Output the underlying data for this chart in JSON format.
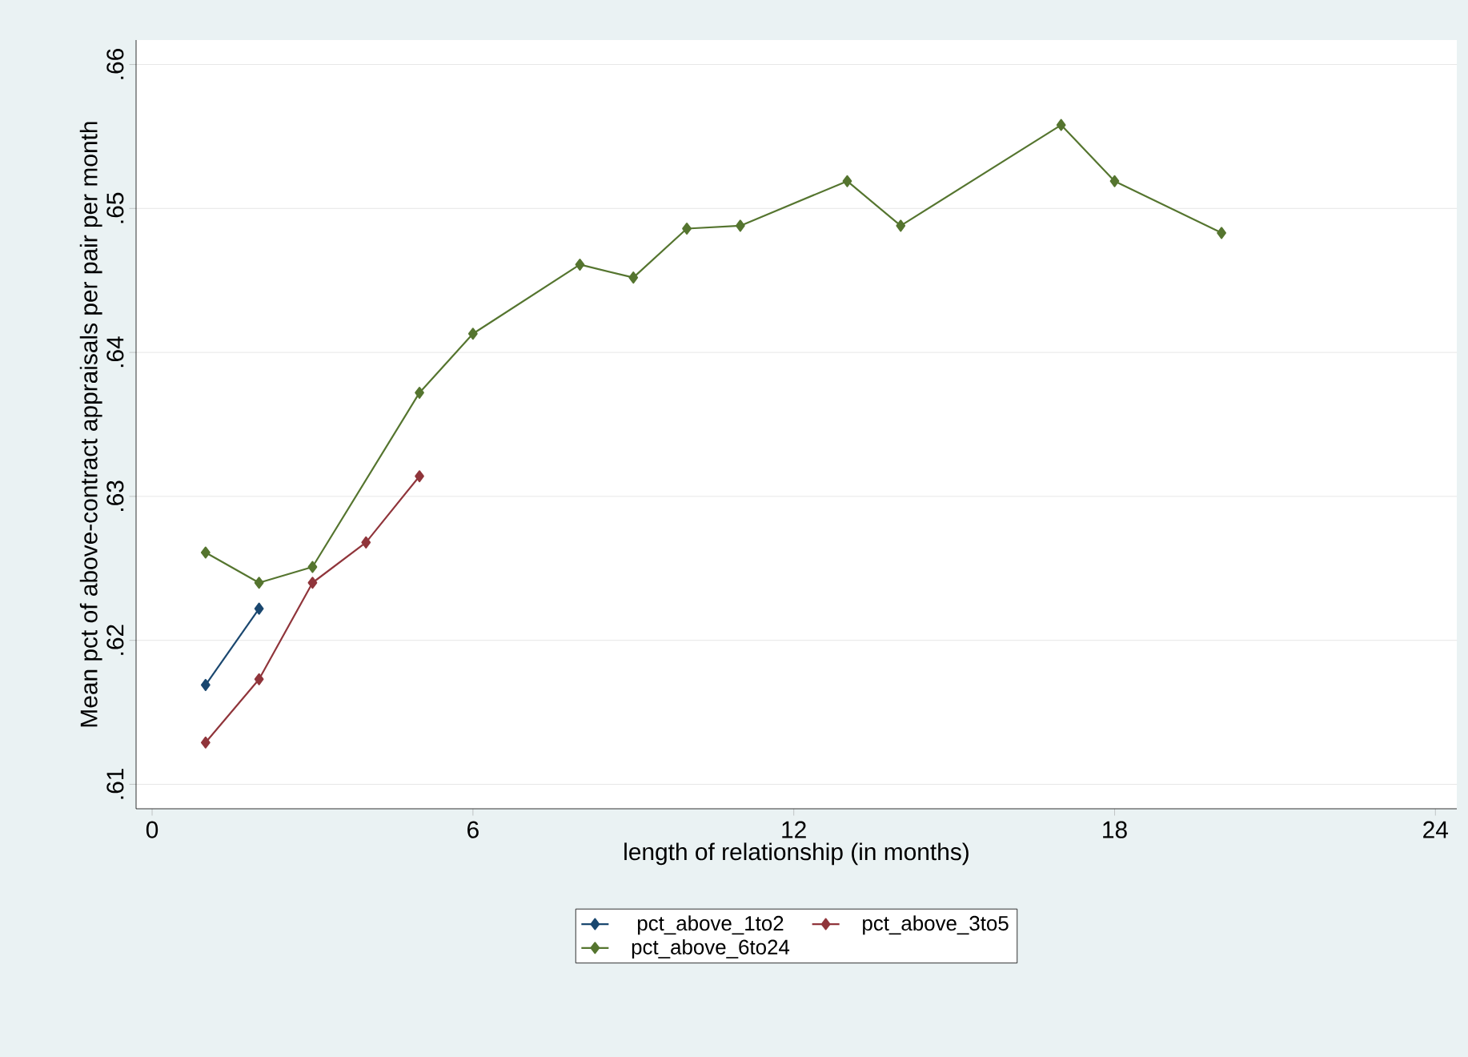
{
  "chart_data": {
    "type": "line",
    "xlabel": "length of relationship (in months)",
    "ylabel": "Mean pct of above-contract appraisals per pair per month",
    "xlim": [
      -0.3,
      24.4
    ],
    "ylim": [
      0.6083,
      0.6617
    ],
    "xticks": [
      0,
      6,
      12,
      18,
      24
    ],
    "yticks": [
      {
        "value": 0.61,
        "label": ".61"
      },
      {
        "value": 0.62,
        "label": ".62"
      },
      {
        "value": 0.63,
        "label": ".63"
      },
      {
        "value": 0.64,
        "label": ".64"
      },
      {
        "value": 0.65,
        "label": ".65"
      },
      {
        "value": 0.66,
        "label": ".66"
      }
    ],
    "grid": "y",
    "legend": "bottom",
    "marker": "diamond",
    "series": [
      {
        "name": "pct_above_1to2",
        "color": "#1a476f",
        "x": [
          1,
          2
        ],
        "values": [
          0.6169,
          0.6222
        ]
      },
      {
        "name": "pct_above_3to5",
        "color": "#90353b",
        "x": [
          1,
          2,
          3,
          4,
          5
        ],
        "values": [
          0.6129,
          0.6173,
          0.624,
          0.6268,
          0.6314
        ]
      },
      {
        "name": "pct_above_6to24",
        "color": "#55752f",
        "x": [
          1,
          2,
          3,
          5,
          6,
          8,
          9,
          10,
          11,
          13,
          14,
          17,
          18,
          20
        ],
        "values": [
          0.6261,
          0.624,
          0.6251,
          0.6372,
          0.6413,
          0.6461,
          0.6452,
          0.6486,
          0.6488,
          0.6519,
          0.6488,
          0.6558,
          0.6519,
          0.6483
        ]
      }
    ]
  }
}
